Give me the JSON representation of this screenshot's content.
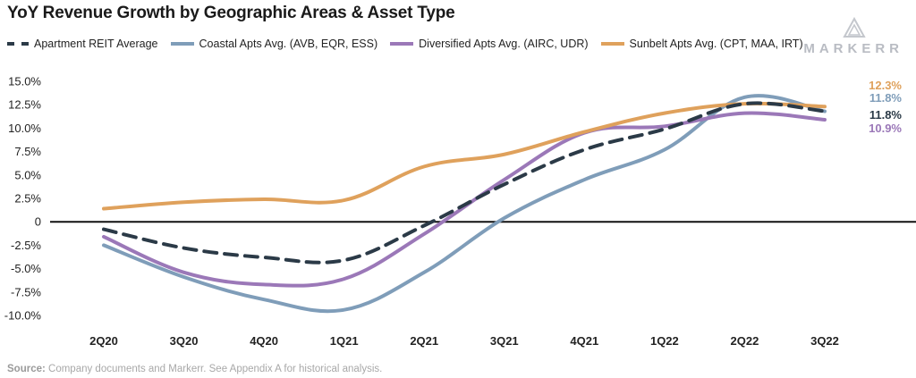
{
  "header": {
    "title": "YoY Revenue Growth by Geographic Areas & Asset Type",
    "logo_text": "MARKERR"
  },
  "footer": {
    "source_label": "Source:",
    "source_text": " Company documents and Markerr. See Appendix A for historical analysis."
  },
  "colors": {
    "apartment": "#2b3a47",
    "coastal": "#7f9db9",
    "diversified": "#9b78b8",
    "sunbelt": "#dfa15c"
  },
  "chart_data": {
    "type": "line",
    "title": "YoY Revenue Growth by Geographic Areas & Asset Type",
    "xlabel": "",
    "ylabel": "",
    "categories": [
      "2Q20",
      "3Q20",
      "4Q20",
      "1Q21",
      "2Q21",
      "3Q21",
      "4Q21",
      "1Q22",
      "2Q22",
      "3Q22"
    ],
    "y_ticks": [
      15.0,
      12.5,
      10.0,
      7.5,
      5.0,
      2.5,
      0,
      -2.5,
      -5.0,
      -7.5,
      -10.0
    ],
    "y_tick_labels": [
      "15.0%",
      "12.5%",
      "10.0%",
      "7.5%",
      "5.0%",
      "2.5%",
      "0",
      "-2.5%",
      "-5.0%",
      "-7.5%",
      "-10.0%"
    ],
    "ylim": [
      -10.0,
      15.0
    ],
    "grid": false,
    "legend_position": "top-left",
    "series": [
      {
        "name": "Apartment REIT Average",
        "style": "dashed",
        "color": "#2b3a47",
        "values": [
          -0.8,
          -2.8,
          -3.8,
          -4.1,
          -0.4,
          4.0,
          7.7,
          9.9,
          12.6,
          11.8
        ],
        "end_label": "11.8%"
      },
      {
        "name": "Coastal Apts Avg. (AVB, EQR, ESS)",
        "style": "solid",
        "color": "#7f9db9",
        "values": [
          -2.5,
          -5.9,
          -8.3,
          -9.4,
          -5.4,
          0.4,
          4.5,
          7.7,
          13.3,
          11.8
        ],
        "end_label": "11.8%"
      },
      {
        "name": "Diversified Apts Avg. (AIRC, UDR)",
        "style": "solid",
        "color": "#9b78b8",
        "values": [
          -1.6,
          -5.4,
          -6.7,
          -6.1,
          -1.3,
          4.5,
          9.5,
          10.2,
          11.6,
          10.9
        ],
        "end_label": "10.9%"
      },
      {
        "name": "Sunbelt Apts Avg. (CPT, MAA, IRT)",
        "style": "solid",
        "color": "#dfa15c",
        "values": [
          1.4,
          2.1,
          2.4,
          2.3,
          5.9,
          7.2,
          9.6,
          11.6,
          12.6,
          12.3
        ],
        "end_label": "12.3%"
      }
    ]
  }
}
